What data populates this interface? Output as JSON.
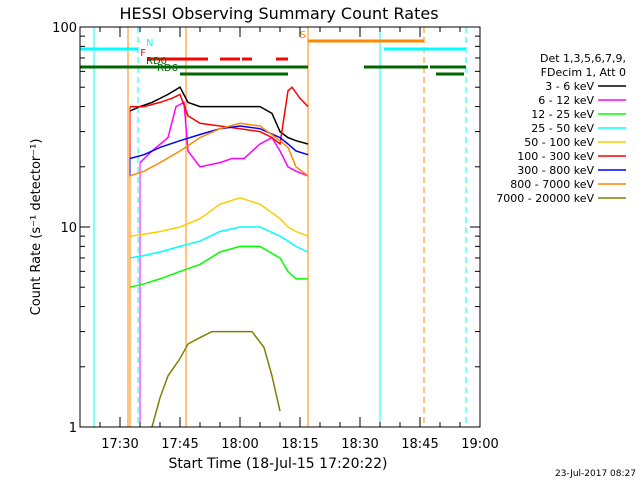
{
  "chart_data": {
    "type": "line",
    "title": "HESSI Observing Summary Count Rates",
    "xlabel": "Start Time (18-Jul-15 17:20:22)",
    "ylabel": "Count Rate (s⁻¹ detector⁻¹)",
    "y_log": true,
    "ylim": [
      1,
      100
    ],
    "xlim_min": [
      1040,
      1140
    ],
    "x_ticks": [
      {
        "min": 1050,
        "label": "17:30"
      },
      {
        "min": 1065,
        "label": "17:45"
      },
      {
        "min": 1080,
        "label": "18:00"
      },
      {
        "min": 1095,
        "label": "18:15"
      },
      {
        "min": 1110,
        "label": "18:30"
      },
      {
        "min": 1125,
        "label": "18:45"
      },
      {
        "min": 1140,
        "label": "19:00"
      }
    ],
    "y_ticks": [
      {
        "value": 100,
        "label": "100"
      },
      {
        "value": 10,
        "label": "10"
      },
      {
        "value": 1,
        "label": "1"
      }
    ],
    "legend": {
      "header": [
        "Det 1,3,5,6,7,9,",
        "FDecim 1, Att 0"
      ],
      "position": "right"
    },
    "series": [
      {
        "name": "3 - 6 keV",
        "color": "#000000",
        "x": [
          1052.5,
          1055,
          1058,
          1062,
          1065,
          1067,
          1070,
          1075,
          1080,
          1085,
          1088,
          1090,
          1092,
          1094,
          1097
        ],
        "y": [
          38,
          40,
          42,
          46,
          50,
          42,
          40,
          40,
          40,
          40,
          37,
          30,
          28,
          27,
          26
        ]
      },
      {
        "name": "6 - 12 keV",
        "color": "#ff00ff",
        "x": [
          1055,
          1058,
          1062,
          1064,
          1066,
          1067,
          1070,
          1075,
          1078,
          1081,
          1085,
          1088,
          1090,
          1092,
          1094,
          1097
        ],
        "y": [
          21,
          24,
          28,
          40,
          42,
          24,
          20,
          21,
          22,
          22,
          26,
          28,
          24,
          20,
          19,
          18
        ]
      },
      {
        "name": "12 - 25 keV",
        "color": "#00ff00",
        "x": [
          1052.5,
          1056,
          1060,
          1065,
          1070,
          1075,
          1080,
          1085,
          1090,
          1092,
          1094,
          1097
        ],
        "y": [
          5,
          5.2,
          5.5,
          6,
          6.5,
          7.5,
          8,
          8,
          7,
          6,
          5.5,
          5.5
        ]
      },
      {
        "name": "25 - 50 keV",
        "color": "#00ffff",
        "x": [
          1052.5,
          1056,
          1060,
          1065,
          1070,
          1075,
          1080,
          1085,
          1090,
          1092,
          1094,
          1097
        ],
        "y": [
          7,
          7.2,
          7.5,
          8,
          8.5,
          9.5,
          10,
          10,
          9,
          8.5,
          8,
          7.5
        ]
      },
      {
        "name": "50 - 100 keV",
        "color": "#ffcc00",
        "x": [
          1052.5,
          1056,
          1060,
          1065,
          1070,
          1075,
          1080,
          1085,
          1090,
          1092,
          1094,
          1097
        ],
        "y": [
          9,
          9.2,
          9.5,
          10,
          11,
          13,
          14,
          13,
          11,
          10,
          9.5,
          9
        ]
      },
      {
        "name": "100 - 300 keV",
        "color": "#ff0000",
        "x": [
          1052.5,
          1056,
          1060,
          1063,
          1065,
          1067,
          1070,
          1075,
          1080,
          1085,
          1088,
          1090,
          1092,
          1093,
          1095,
          1097
        ],
        "y": [
          40,
          40,
          42,
          44,
          46,
          36,
          33,
          32,
          31,
          30,
          28,
          26,
          48,
          50,
          44,
          40
        ]
      },
      {
        "name": "300 - 800 keV",
        "color": "#0000ff",
        "x": [
          1052.5,
          1056,
          1060,
          1065,
          1070,
          1075,
          1080,
          1085,
          1090,
          1092,
          1094,
          1097
        ],
        "y": [
          22,
          23,
          25,
          27,
          29,
          31,
          32,
          31,
          28,
          26,
          24,
          23
        ]
      },
      {
        "name": "800 - 7000 keV",
        "color": "#ff8800",
        "x": [
          1052.5,
          1056,
          1060,
          1065,
          1070,
          1075,
          1080,
          1085,
          1090,
          1092,
          1094,
          1097
        ],
        "y": [
          18,
          19,
          21,
          24,
          28,
          31,
          33,
          32,
          27,
          25,
          20,
          18
        ]
      },
      {
        "name": "7000 - 20000 keV",
        "color": "#808000",
        "x": [
          1058,
          1060,
          1062,
          1065,
          1067,
          1070,
          1073,
          1076,
          1080,
          1083,
          1086,
          1088,
          1090
        ],
        "y": [
          1,
          1.4,
          1.8,
          2.2,
          2.6,
          2.8,
          3,
          3,
          3,
          3,
          2.5,
          1.8,
          1.2
        ]
      }
    ],
    "vlines": [
      {
        "x": 1043.5,
        "color": "#00ffff",
        "style": "solid"
      },
      {
        "x": 1052,
        "color": "#ff8800",
        "style": "solid"
      },
      {
        "x": 1054.5,
        "color": "#00ffff",
        "style": "dashed"
      },
      {
        "x": 1066.5,
        "color": "#ff8800",
        "style": "solid"
      },
      {
        "x": 1097,
        "color": "#ff8800",
        "style": "solid"
      },
      {
        "x": 1115,
        "color": "#00ffff",
        "style": "solid"
      },
      {
        "x": 1126,
        "color": "#ff8800",
        "style": "dashed"
      },
      {
        "x": 1136.5,
        "color": "#00ffff",
        "style": "dashed"
      }
    ],
    "flag_bars": [
      {
        "label": "N",
        "color": "#00ffff",
        "y": 49,
        "segments": [
          [
            1040,
            1054.5
          ],
          [
            1116,
            1136.5
          ]
        ]
      },
      {
        "label": "F",
        "color": "#ff0000",
        "y": 59,
        "segments": [
          [
            1057,
            1072
          ],
          [
            1075,
            1080
          ],
          [
            1080.5,
            1083
          ],
          [
            1089,
            1092
          ]
        ]
      },
      {
        "label": "S",
        "color": "#ff8800",
        "y": 41,
        "segments": [
          [
            1097,
            1126
          ]
        ]
      },
      {
        "label": "RD0",
        "color": "#006600",
        "y": 67,
        "segments": [
          [
            1040,
            1097
          ],
          [
            1111,
            1127
          ],
          [
            1127.5,
            1136.5
          ]
        ]
      },
      {
        "label": "RD6",
        "color": "#006600",
        "y": 74,
        "segments": [
          [
            1065,
            1092
          ],
          [
            1129,
            1136
          ]
        ]
      }
    ],
    "footer_date": "23-Jul-2017 08:27"
  }
}
